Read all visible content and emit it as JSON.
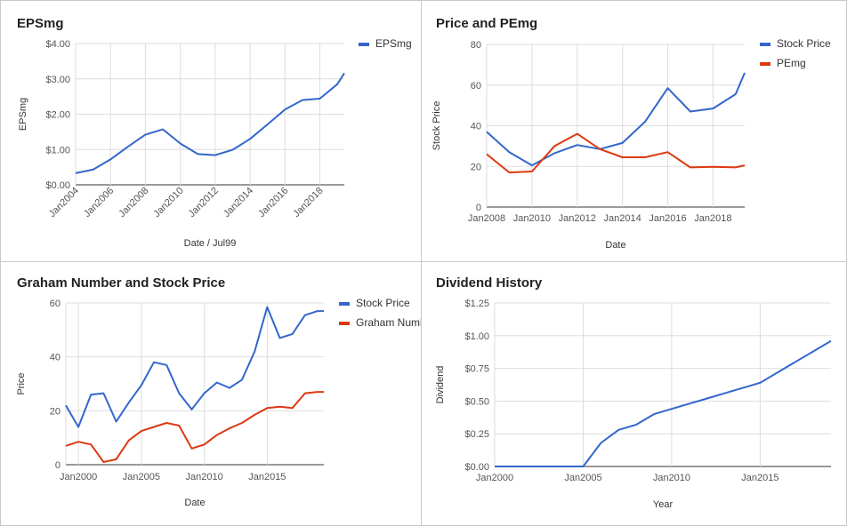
{
  "chart_data": [
    {
      "type": "line",
      "title": "EPSmg",
      "xlabel": "Date / Jul99",
      "ylabel": "EPSmg",
      "x_ticks": [
        "Jan2004",
        "Jan2006",
        "Jan2008",
        "Jan2010",
        "Jan2012",
        "Jan2014",
        "Jan2016",
        "Jan2018"
      ],
      "y_ticks": [
        "$0.00",
        "$1.00",
        "$2.00",
        "$3.00",
        "$4.00"
      ],
      "xlim": [
        2004,
        2019.4
      ],
      "ylim": [
        0,
        4
      ],
      "grid": true,
      "legend_position": "right",
      "series": [
        {
          "name": "EPSmg",
          "color": "#3366cc",
          "x": [
            2004,
            2005,
            2006,
            2007,
            2008,
            2009,
            2010,
            2011,
            2012,
            2013,
            2014,
            2015,
            2016,
            2017,
            2018,
            2019,
            2019.4
          ],
          "y": [
            0.33,
            0.43,
            0.72,
            1.08,
            1.42,
            1.57,
            1.17,
            0.87,
            0.84,
            0.99,
            1.3,
            1.71,
            2.13,
            2.4,
            2.44,
            2.85,
            3.16
          ]
        }
      ]
    },
    {
      "type": "line",
      "title": "Price and PEmg",
      "xlabel": "Date",
      "ylabel": "Stock Price",
      "x_ticks": [
        "Jan2008",
        "Jan2010",
        "Jan2012",
        "Jan2014",
        "Jan2016",
        "Jan2018"
      ],
      "y_ticks": [
        "0",
        "20",
        "40",
        "60",
        "80"
      ],
      "xlim": [
        2008,
        2019.4
      ],
      "ylim": [
        0,
        80
      ],
      "grid": true,
      "legend_position": "right",
      "series": [
        {
          "name": "Stock Price",
          "color": "#3366cc",
          "x": [
            2008,
            2009,
            2010,
            2011,
            2012,
            2013,
            2014,
            2015,
            2016,
            2017,
            2018,
            2019,
            2019.4
          ],
          "y": [
            37,
            27,
            20.5,
            26.5,
            30.5,
            28.5,
            31.5,
            42,
            58.5,
            47,
            48.5,
            55.5,
            66
          ]
        },
        {
          "name": "PEmg",
          "color": "#dc3912",
          "x": [
            2008,
            2009,
            2010,
            2011,
            2012,
            2013,
            2014,
            2015,
            2016,
            2017,
            2018,
            2019,
            2019.4
          ],
          "y": [
            26,
            17,
            17.5,
            30,
            36,
            28.5,
            24.5,
            24.5,
            27,
            19.5,
            19.8,
            19.5,
            20.5
          ]
        }
      ]
    },
    {
      "type": "line",
      "title": "Graham Number and Stock Price",
      "xlabel": "Date",
      "ylabel": "Price",
      "x_ticks": [
        "Jan2000",
        "Jan2005",
        "Jan2010",
        "Jan2015"
      ],
      "y_ticks": [
        "0",
        "20",
        "40",
        "60"
      ],
      "xlim": [
        1999,
        2019.5
      ],
      "ylim": [
        0,
        60
      ],
      "grid": true,
      "legend_position": "right",
      "series": [
        {
          "name": "Stock Price",
          "color": "#3366cc",
          "x": [
            1999,
            2000,
            2001,
            2002,
            2003,
            2004,
            2005,
            2006,
            2007,
            2008,
            2009,
            2010,
            2011,
            2012,
            2013,
            2014,
            2015,
            2016,
            2017,
            2018,
            2019,
            2019.5
          ],
          "y": [
            22,
            14,
            26,
            26.5,
            16,
            23,
            29.5,
            38,
            37,
            26.5,
            20.5,
            26.5,
            30.5,
            28.5,
            31.5,
            42,
            58.5,
            47,
            48.5,
            55.5,
            57,
            57
          ]
        },
        {
          "name": "Graham Number",
          "color": "#dc3912",
          "x": [
            1999,
            2000,
            2001,
            2002,
            2003,
            2004,
            2005,
            2006,
            2007,
            2008,
            2009,
            2010,
            2011,
            2012,
            2013,
            2014,
            2015,
            2016,
            2017,
            2018,
            2019,
            2019.5
          ],
          "y": [
            7,
            8.5,
            7.5,
            1,
            2,
            9,
            12.5,
            14,
            15.5,
            14.5,
            6,
            7.5,
            11,
            13.5,
            15.5,
            18.5,
            21,
            21.5,
            21,
            26.5,
            27,
            27
          ]
        }
      ]
    },
    {
      "type": "line",
      "title": "Dividend History",
      "xlabel": "Year",
      "ylabel": "Dividend",
      "x_ticks": [
        "Jan2000",
        "Jan2005",
        "Jan2010",
        "Jan2015"
      ],
      "y_ticks": [
        "$0.00",
        "$0.25",
        "$0.50",
        "$0.75",
        "$1.00",
        "$1.25"
      ],
      "xlim": [
        2000,
        2019
      ],
      "ylim": [
        0,
        1.25
      ],
      "grid": true,
      "legend_position": "none",
      "series": [
        {
          "name": "",
          "color": "#3366cc",
          "x": [
            2000,
            2001,
            2002,
            2003,
            2004,
            2005,
            2006,
            2007,
            2008,
            2009,
            2010,
            2011,
            2012,
            2013,
            2014,
            2015,
            2016,
            2017,
            2018,
            2019
          ],
          "y": [
            0,
            0,
            0,
            0,
            0,
            0,
            0.18,
            0.28,
            0.32,
            0.4,
            0.44,
            0.48,
            0.52,
            0.56,
            0.6,
            0.64,
            0.72,
            0.8,
            0.88,
            0.96
          ]
        }
      ]
    }
  ]
}
